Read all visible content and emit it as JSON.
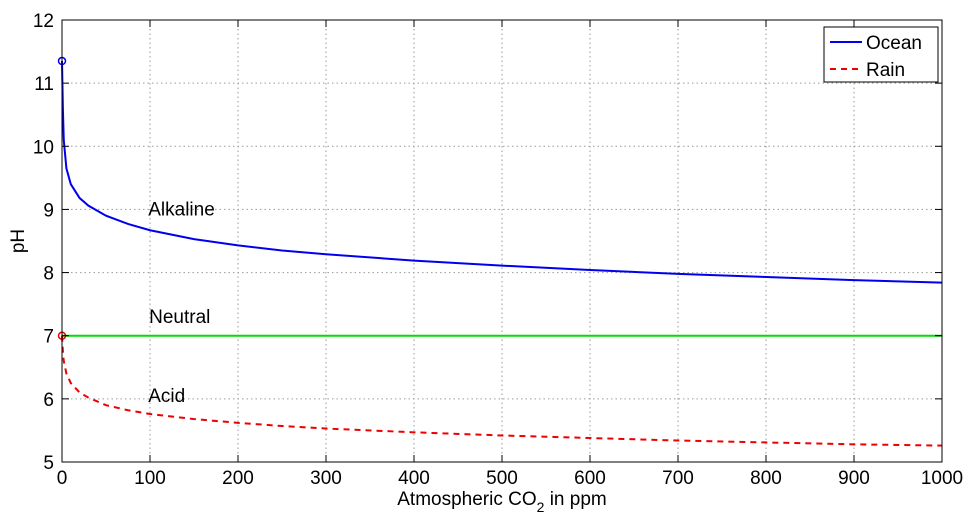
{
  "chart_data": {
    "type": "line",
    "xlabel": "Atmospheric CO",
    "xlabel_subscript": "2",
    "xlabel_suffix": " in ppm",
    "ylabel": "pH",
    "xlim": [
      0,
      1000
    ],
    "ylim": [
      5,
      12
    ],
    "xticks": [
      0,
      100,
      200,
      300,
      400,
      500,
      600,
      700,
      800,
      900,
      1000
    ],
    "yticks": [
      5,
      6,
      7,
      8,
      9,
      10,
      11,
      12
    ],
    "grid": true,
    "legend_position": "top-right",
    "series": [
      {
        "name": "Ocean",
        "color": "#0000ee",
        "style": "solid",
        "start_marker": [
          0,
          11.35
        ],
        "points": [
          [
            0,
            11.35
          ],
          [
            1,
            10.6
          ],
          [
            2,
            10.1
          ],
          [
            5,
            9.65
          ],
          [
            10,
            9.4
          ],
          [
            20,
            9.18
          ],
          [
            30,
            9.06
          ],
          [
            50,
            8.9
          ],
          [
            75,
            8.77
          ],
          [
            100,
            8.67
          ],
          [
            150,
            8.53
          ],
          [
            200,
            8.43
          ],
          [
            250,
            8.35
          ],
          [
            300,
            8.29
          ],
          [
            400,
            8.19
          ],
          [
            500,
            8.11
          ],
          [
            600,
            8.04
          ],
          [
            700,
            7.98
          ],
          [
            800,
            7.93
          ],
          [
            900,
            7.88
          ],
          [
            1000,
            7.84
          ]
        ]
      },
      {
        "name": "Rain",
        "color": "#ee0000",
        "style": "dashed",
        "start_marker": [
          0,
          7.0
        ],
        "points": [
          [
            0,
            7.0
          ],
          [
            1,
            6.75
          ],
          [
            2,
            6.6
          ],
          [
            5,
            6.4
          ],
          [
            10,
            6.25
          ],
          [
            20,
            6.1
          ],
          [
            30,
            6.02
          ],
          [
            50,
            5.9
          ],
          [
            75,
            5.82
          ],
          [
            100,
            5.76
          ],
          [
            150,
            5.68
          ],
          [
            200,
            5.62
          ],
          [
            250,
            5.57
          ],
          [
            300,
            5.53
          ],
          [
            400,
            5.47
          ],
          [
            500,
            5.42
          ],
          [
            600,
            5.38
          ],
          [
            700,
            5.34
          ],
          [
            800,
            5.31
          ],
          [
            900,
            5.28
          ],
          [
            1000,
            5.26
          ]
        ]
      },
      {
        "name": "",
        "color": "#00dd00",
        "style": "solid",
        "points": [
          [
            0,
            7
          ],
          [
            1000,
            7
          ]
        ]
      }
    ],
    "annotations": [
      {
        "text": "Alkaline",
        "x": 98,
        "y": 8.9
      },
      {
        "text": "Neutral",
        "x": 99,
        "y": 7.2
      },
      {
        "text": "Acid",
        "x": 98,
        "y": 5.95
      }
    ]
  }
}
